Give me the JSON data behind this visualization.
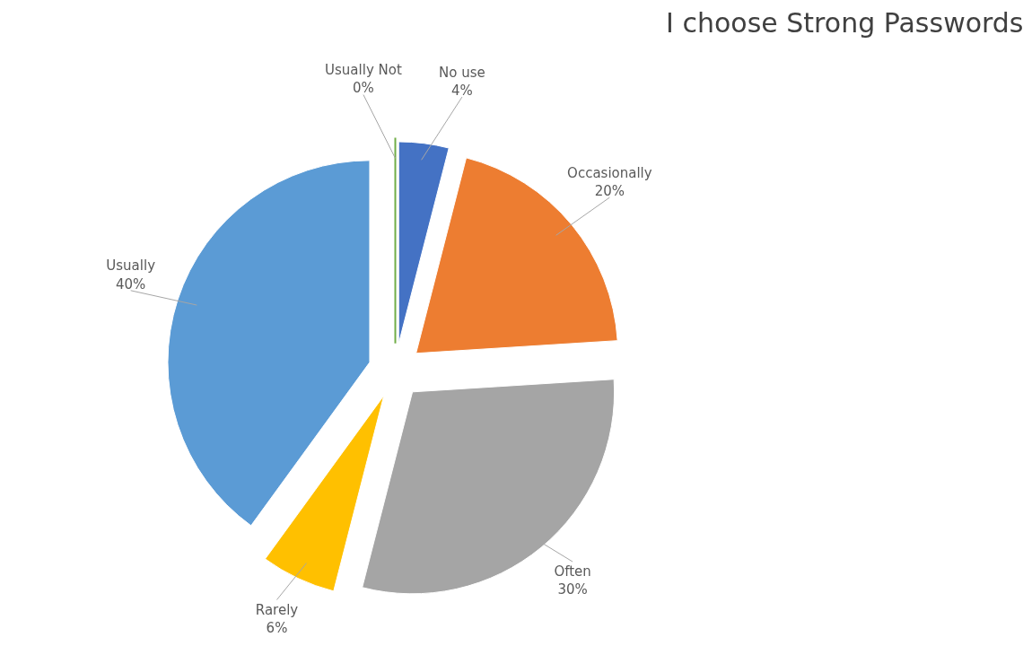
{
  "chart_data": {
    "type": "pie",
    "title": "I choose Strong Passwords",
    "categories": [
      "No use",
      "Occasionally",
      "Often",
      "Rarely",
      "Usually",
      "Usually Not"
    ],
    "values": [
      4,
      20,
      30,
      6,
      40,
      0
    ],
    "value_labels": [
      "4%",
      "20%",
      "30%",
      "6%",
      "40%",
      "0%"
    ],
    "colors": [
      "#4472c4",
      "#ed7d31",
      "#a5a5a5",
      "#ffc000",
      "#5b9bd5",
      "#70ad47"
    ]
  }
}
